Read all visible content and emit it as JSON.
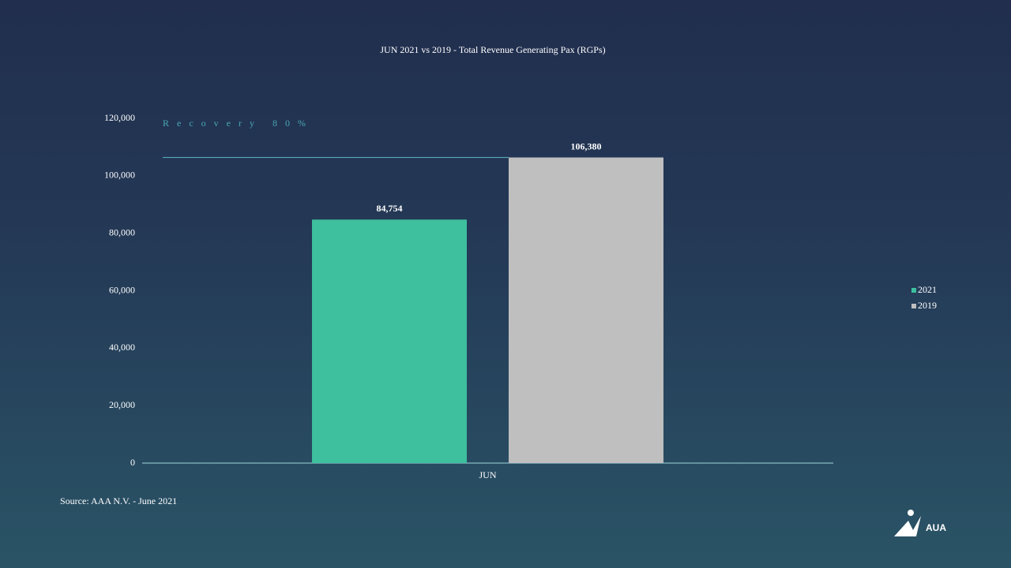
{
  "chart_data": {
    "type": "bar",
    "title": "JUN 2021 vs 2019 - Total Revenue  Generating  Pax (RGPs)",
    "categories": [
      "JUN"
    ],
    "series": [
      {
        "name": "2021",
        "color": "#3ebf9e",
        "values": [
          84754
        ],
        "value_labels": [
          "84,754"
        ]
      },
      {
        "name": "2019",
        "color": "#bfbfbf",
        "values": [
          106380
        ],
        "value_labels": [
          "106,380"
        ]
      }
    ],
    "ylim": [
      0,
      120000
    ],
    "yticks": [
      0,
      {
        "value": 20000,
        "label": "20,000"
      },
      {
        "value": 40000,
        "label": "40,000"
      },
      {
        "value": 60000,
        "label": "60,000"
      },
      {
        "value": 80000,
        "label": "80,000"
      },
      {
        "value": 100000,
        "label": "100,000"
      },
      {
        "value": 120000,
        "label": "120,000"
      }
    ],
    "grid": false,
    "legend": "right",
    "annotation": "Recovery 80%",
    "source": "Source:  AAA N.V.  - June 2021"
  },
  "logo": "AUA"
}
